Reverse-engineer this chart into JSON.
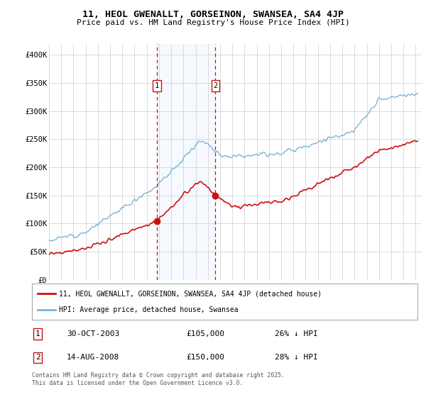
{
  "title": "11, HEOL GWENALLT, GORSEINON, SWANSEA, SA4 4JP",
  "subtitle": "Price paid vs. HM Land Registry's House Price Index (HPI)",
  "ylim": [
    0,
    420000
  ],
  "yticks": [
    0,
    50000,
    100000,
    150000,
    200000,
    250000,
    300000,
    350000,
    400000
  ],
  "ytick_labels": [
    "£0",
    "£50K",
    "£100K",
    "£150K",
    "£200K",
    "£250K",
    "£300K",
    "£350K",
    "£400K"
  ],
  "hpi_color": "#7ab4d8",
  "price_color": "#cc1111",
  "marker1_date": 2003.83,
  "marker2_date": 2008.62,
  "marker1_price": 105000,
  "marker2_price": 150000,
  "transaction1": "30-OCT-2003",
  "transaction1_price": "£105,000",
  "transaction1_hpi": "26% ↓ HPI",
  "transaction2": "14-AUG-2008",
  "transaction2_price": "£150,000",
  "transaction2_hpi": "28% ↓ HPI",
  "legend1": "11, HEOL GWENALLT, GORSEINON, SWANSEA, SA4 4JP (detached house)",
  "legend2": "HPI: Average price, detached house, Swansea",
  "footnote": "Contains HM Land Registry data © Crown copyright and database right 2025.\nThis data is licensed under the Open Government Licence v3.0.",
  "bg_color": "#ffffff",
  "grid_color": "#cccccc",
  "shade_color": "#ddeeff"
}
